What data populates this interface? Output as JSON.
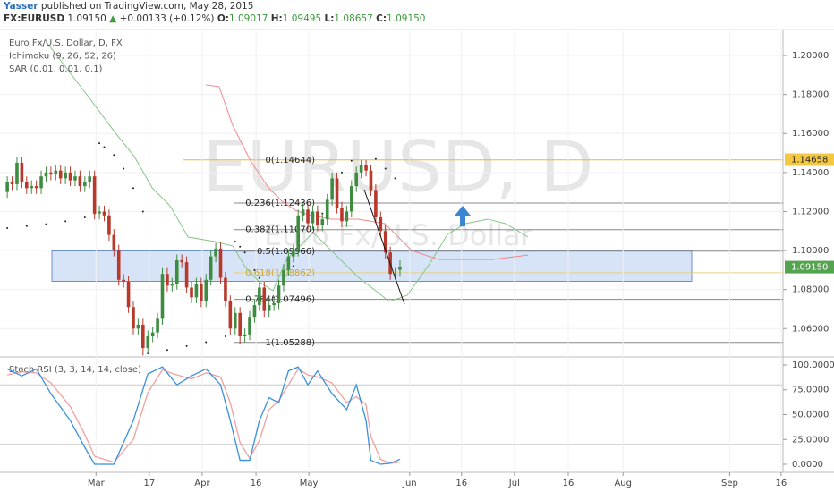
{
  "header": {
    "author": "Yasser",
    "published": "published on TradingView.com, May 28, 2015",
    "symbol": "FX:EURUSD",
    "last": "1.09150",
    "arrow": "▲",
    "change": "+0.00133 (+0.12%)",
    "ohlc": [
      {
        "label": "O:",
        "value": "1.09017"
      },
      {
        "label": "H:",
        "value": "1.09495"
      },
      {
        "label": "L:",
        "value": "1.08657"
      },
      {
        "label": "C:",
        "value": "1.09150"
      }
    ]
  },
  "chart_data": [
    {
      "type": "candlestick",
      "watermark": "EURUSD, D",
      "watermark_sub": "Euro Fx/U.S. Dollar",
      "legend": [
        "Euro Fx/U.S. Dollar, D, FX",
        "Ichimoku (9, 26, 52, 26)",
        "SAR (0.01, 0.01, 0.1)"
      ],
      "xlim": [
        -1.5,
        160
      ],
      "ylim": [
        1.0459,
        1.2124
      ],
      "yticks": [
        {
          "value": 1.2,
          "label": "1.20000"
        },
        {
          "value": 1.18,
          "label": "1.18000"
        },
        {
          "value": 1.16,
          "label": "1.16000"
        },
        {
          "value": 1.14,
          "label": "1.14000"
        },
        {
          "value": 1.12,
          "label": "1.12000"
        },
        {
          "value": 1.1,
          "label": "1.10000"
        },
        {
          "value": 1.08,
          "label": "1.08000"
        },
        {
          "value": 1.06,
          "label": "1.06000"
        }
      ],
      "up_color": "#3d8c40",
      "down_color": "#b8392b",
      "candles": [
        [
          1.13,
          1.138,
          1.127,
          1.135
        ],
        [
          1.135,
          1.138,
          1.131,
          1.134
        ],
        [
          1.134,
          1.148,
          1.131,
          1.145
        ],
        [
          1.145,
          1.148,
          1.132,
          1.135
        ],
        [
          1.135,
          1.138,
          1.129,
          1.132
        ],
        [
          1.132,
          1.136,
          1.129,
          1.133
        ],
        [
          1.133,
          1.136,
          1.129,
          1.132
        ],
        [
          1.132,
          1.141,
          1.129,
          1.138
        ],
        [
          1.138,
          1.143,
          1.135,
          1.14
        ],
        [
          1.14,
          1.143,
          1.136,
          1.139
        ],
        [
          1.139,
          1.144,
          1.136,
          1.141
        ],
        [
          1.141,
          1.144,
          1.134,
          1.137
        ],
        [
          1.137,
          1.143,
          1.134,
          1.14
        ],
        [
          1.14,
          1.143,
          1.133,
          1.136
        ],
        [
          1.136,
          1.141,
          1.133,
          1.138
        ],
        [
          1.138,
          1.141,
          1.13,
          1.133
        ],
        [
          1.133,
          1.138,
          1.13,
          1.135
        ],
        [
          1.135,
          1.141,
          1.132,
          1.138
        ],
        [
          1.138,
          1.141,
          1.116,
          1.119
        ],
        [
          1.119,
          1.123,
          1.116,
          1.12
        ],
        [
          1.12,
          1.123,
          1.115,
          1.118
        ],
        [
          1.118,
          1.121,
          1.105,
          1.108
        ],
        [
          1.108,
          1.111,
          1.097,
          1.1
        ],
        [
          1.1,
          1.103,
          1.082,
          1.085
        ],
        [
          1.085,
          1.088,
          1.081,
          1.084
        ],
        [
          1.084,
          1.087,
          1.068,
          1.071
        ],
        [
          1.071,
          1.074,
          1.057,
          1.06
        ],
        [
          1.06,
          1.065,
          1.057,
          1.062
        ],
        [
          1.062,
          1.065,
          1.0462,
          1.05
        ],
        [
          1.05,
          1.059,
          1.047,
          1.056
        ],
        [
          1.056,
          1.061,
          1.053,
          1.058
        ],
        [
          1.058,
          1.068,
          1.055,
          1.065
        ],
        [
          1.065,
          1.091,
          1.062,
          1.088
        ],
        [
          1.088,
          1.091,
          1.079,
          1.082
        ],
        [
          1.082,
          1.086,
          1.079,
          1.083
        ],
        [
          1.083,
          1.098,
          1.08,
          1.095
        ],
        [
          1.095,
          1.098,
          1.091,
          1.094
        ],
        [
          1.094,
          1.097,
          1.078,
          1.081
        ],
        [
          1.081,
          1.084,
          1.073,
          1.076
        ],
        [
          1.076,
          1.086,
          1.073,
          1.083
        ],
        [
          1.083,
          1.086,
          1.071,
          1.074
        ],
        [
          1.074,
          1.088,
          1.071,
          1.085
        ],
        [
          1.085,
          1.1,
          1.082,
          1.097
        ],
        [
          1.097,
          1.104,
          1.094,
          1.101
        ],
        [
          1.101,
          1.104,
          1.083,
          1.086
        ],
        [
          1.086,
          1.089,
          1.071,
          1.074
        ],
        [
          1.074,
          1.077,
          1.057,
          1.06
        ],
        [
          1.06,
          1.071,
          1.057,
          1.068
        ],
        [
          1.068,
          1.071,
          1.052,
          1.056
        ],
        [
          1.056,
          1.06,
          1.053,
          1.057
        ],
        [
          1.057,
          1.069,
          1.054,
          1.066
        ],
        [
          1.066,
          1.075,
          1.063,
          1.072
        ],
        [
          1.072,
          1.084,
          1.069,
          1.081
        ],
        [
          1.081,
          1.084,
          1.066,
          1.069
        ],
        [
          1.069,
          1.075,
          1.066,
          1.072
        ],
        [
          1.072,
          1.076,
          1.069,
          1.073
        ],
        [
          1.073,
          1.085,
          1.07,
          1.082
        ],
        [
          1.082,
          1.093,
          1.079,
          1.09
        ],
        [
          1.09,
          1.1,
          1.087,
          1.097
        ],
        [
          1.097,
          1.103,
          1.094,
          1.1
        ],
        [
          1.1,
          1.121,
          1.097,
          1.118
        ],
        [
          1.118,
          1.124,
          1.115,
          1.121
        ],
        [
          1.121,
          1.124,
          1.111,
          1.114
        ],
        [
          1.114,
          1.123,
          1.111,
          1.12
        ],
        [
          1.12,
          1.123,
          1.11,
          1.113
        ],
        [
          1.113,
          1.119,
          1.11,
          1.116
        ],
        [
          1.116,
          1.129,
          1.113,
          1.126
        ],
        [
          1.126,
          1.14,
          1.123,
          1.137
        ],
        [
          1.137,
          1.14,
          1.119,
          1.122
        ],
        [
          1.122,
          1.125,
          1.112,
          1.115
        ],
        [
          1.115,
          1.123,
          1.112,
          1.12
        ],
        [
          1.12,
          1.136,
          1.117,
          1.133
        ],
        [
          1.133,
          1.143,
          1.13,
          1.14
        ],
        [
          1.14,
          1.1464,
          1.137,
          1.144
        ],
        [
          1.144,
          1.1464,
          1.138,
          1.141
        ],
        [
          1.141,
          1.144,
          1.128,
          1.131
        ],
        [
          1.131,
          1.134,
          1.114,
          1.117
        ],
        [
          1.117,
          1.12,
          1.107,
          1.11
        ],
        [
          1.11,
          1.113,
          1.096,
          1.099
        ],
        [
          1.099,
          1.102,
          1.085,
          1.088
        ],
        [
          1.088,
          1.091,
          1.085,
          1.088
        ],
        [
          1.09017,
          1.09495,
          1.08657,
          1.0915
        ]
      ],
      "lines": [
        {
          "color": "#86c586",
          "x": [
            7.8,
            17,
            22.5,
            26.2,
            29.9,
            33.6,
            37.3,
            42.8,
            46.5,
            49.3,
            52,
            54.8,
            57.6,
            63.1,
            68.7,
            72.4,
            76,
            78.8,
            82.5,
            87.1,
            90.8,
            94.5,
            99.1,
            102.8,
            107.4
          ],
          "values": [
            1.2078,
            1.178,
            1.1596,
            1.1482,
            1.1321,
            1.1229,
            1.1069,
            1.1046,
            1.1023,
            1.0908,
            1.0839,
            1.0794,
            1.0954,
            1.1092,
            1.0954,
            1.0862,
            1.0794,
            1.0739,
            1.0771,
            1.0931,
            1.1083,
            1.1138,
            1.1161,
            1.1138,
            1.1069
          ]
        },
        {
          "color": "#f08a8a",
          "x": [
            41,
            43.7,
            46.5,
            50.2,
            53.9,
            56.7,
            59.4,
            62.2,
            66.8,
            72.4,
            77.9,
            83.4,
            89,
            94.5,
            100,
            107.4
          ],
          "values": [
            1.1849,
            1.184,
            1.1642,
            1.1459,
            1.1321,
            1.1252,
            1.1206,
            1.1183,
            1.1161,
            1.1161,
            1.1138,
            1.1,
            1.0954,
            1.0954,
            1.0954,
            1.0977
          ]
        }
      ],
      "sar": {
        "color": "#222222",
        "x": [
          0,
          4,
          8,
          12,
          16,
          18,
          19,
          20,
          22,
          24,
          26,
          28,
          29,
          33,
          37,
          41,
          45,
          47,
          48,
          49,
          51,
          52,
          53,
          55,
          57,
          59,
          61,
          63,
          65,
          67,
          69,
          71,
          76,
          78,
          80
        ],
        "values": [
          1.1115,
          1.1125,
          1.1135,
          1.115,
          1.117,
          1.119,
          1.155,
          1.153,
          1.149,
          1.142,
          1.132,
          1.12,
          1.0472,
          1.049,
          1.051,
          1.053,
          1.056,
          1.1046,
          1.102,
          1.099,
          1.09,
          1.086,
          1.07,
          1.076,
          1.084,
          1.092,
          1.1,
          1.109,
          1.119,
          1.13,
          1.14,
          1.146,
          1.147,
          1.142,
          1.137
        ]
      },
      "fib": [
        {
          "label": "0(1.14644)",
          "value": 1.14644,
          "color": "#e8b830"
        },
        {
          "label": "0.236(1.12436)",
          "value": 1.12436,
          "color": "#888888"
        },
        {
          "label": "0.382(1.11070)",
          "value": 1.1107,
          "color": "#888888"
        },
        {
          "label": "0.5(1.09966)",
          "value": 1.09966,
          "color": "#888888"
        },
        {
          "label": "0.618(1.08862)",
          "value": 1.08862,
          "color": "#e8d080"
        },
        {
          "label": "0.764(1.07496)",
          "value": 1.07496,
          "color": "#888888"
        },
        {
          "label": "1(1.05288)",
          "value": 1.05288,
          "color": "#888888"
        }
      ],
      "zone": {
        "top": 1.0998,
        "bottom": 1.0842,
        "color": "#bcd0f0"
      },
      "price_labels": [
        {
          "value": 1.14658,
          "label": "1.14658",
          "color": "#f5c842"
        },
        {
          "value": 1.0915,
          "label": "1.09150",
          "color": "#53a34f"
        }
      ]
    },
    {
      "type": "line",
      "title": "Stoch RSI (3, 3, 14, 14, close)",
      "xlim": [
        -1.5,
        160
      ],
      "ylim": [
        -8.1,
        107.2
      ],
      "yticks": [
        {
          "value": 100,
          "label": "100.0000"
        },
        {
          "value": 75,
          "label": "75.0000"
        },
        {
          "value": 50,
          "label": "50.0000"
        },
        {
          "value": 25,
          "label": "25.0000"
        },
        {
          "value": 0,
          "label": "0.0000"
        }
      ],
      "bands": [
        80,
        20
      ],
      "xticks": [
        {
          "value": 18.3,
          "label": "Mar"
        },
        {
          "value": 29.3,
          "label": "17"
        },
        {
          "value": 40.2,
          "label": "Apr"
        },
        {
          "value": 51.3,
          "label": "16"
        },
        {
          "value": 62.2,
          "label": "May"
        },
        {
          "value": 83,
          "label": "Jun"
        },
        {
          "value": 93.7,
          "label": "16"
        },
        {
          "value": 104.6,
          "label": "Jul"
        },
        {
          "value": 115.7,
          "label": "16"
        },
        {
          "value": 127,
          "label": "Aug"
        },
        {
          "value": 149,
          "label": "Sep"
        },
        {
          "value": 159.6,
          "label": "16"
        }
      ],
      "x": [
        0,
        3,
        6,
        9,
        13,
        16,
        18,
        22,
        26,
        29,
        32,
        35,
        38,
        41,
        44,
        46,
        48,
        50,
        52,
        54,
        56,
        58,
        60,
        62,
        64,
        67,
        70,
        72,
        74,
        75,
        77,
        79,
        81
      ],
      "series": [
        {
          "color": "#3a8fd9",
          "values": [
            96,
            89,
            96,
            71,
            44,
            17,
            0,
            0,
            44,
            91,
            98,
            80,
            89,
            96,
            80,
            44,
            4,
            4,
            44,
            67,
            62,
            94,
            98,
            80,
            94,
            71,
            55,
            80,
            44,
            4,
            0,
            1,
            5
          ]
        },
        {
          "color": "#f0a0a0",
          "values": [
            90,
            93,
            92,
            82,
            58,
            30,
            8,
            2,
            25,
            72,
            95,
            90,
            86,
            92,
            88,
            62,
            22,
            6,
            24,
            55,
            64,
            80,
            96,
            90,
            88,
            82,
            62,
            68,
            60,
            28,
            5,
            1,
            2
          ]
        }
      ]
    }
  ]
}
